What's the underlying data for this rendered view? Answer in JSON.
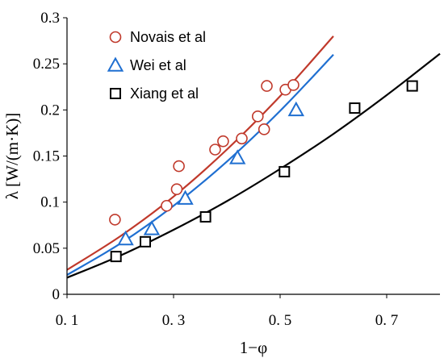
{
  "chart_data": {
    "type": "scatter",
    "xlabel": "1−φ",
    "ylabel": "λ [W/(m·K)]",
    "xlim": [
      0.1,
      0.8
    ],
    "ylim": [
      0,
      0.3
    ],
    "x_ticks": [
      0.1,
      0.3,
      0.5,
      0.7
    ],
    "x_tick_labels": [
      "0. 1",
      "0. 3",
      "0. 5",
      "0. 7"
    ],
    "y_ticks": [
      0,
      0.05,
      0.1,
      0.15,
      0.2,
      0.25,
      0.3
    ],
    "y_tick_labels": [
      "0",
      "0.05",
      "0.1",
      "0.15",
      "0.2",
      "0.25",
      "0.3"
    ],
    "grid": false,
    "legend_position": "top-left",
    "series": [
      {
        "name": "Novais et al",
        "marker": "circle",
        "color": "#c0392b",
        "points": [
          [
            0.19,
            0.081
          ],
          [
            0.287,
            0.096
          ],
          [
            0.306,
            0.114
          ],
          [
            0.31,
            0.139
          ],
          [
            0.378,
            0.157
          ],
          [
            0.393,
            0.166
          ],
          [
            0.428,
            0.169
          ],
          [
            0.458,
            0.193
          ],
          [
            0.47,
            0.179
          ],
          [
            0.475,
            0.226
          ],
          [
            0.51,
            0.222
          ],
          [
            0.525,
            0.227
          ]
        ],
        "fit": [
          [
            0.1,
            0.0265
          ],
          [
            0.2,
            0.063
          ],
          [
            0.3,
            0.106
          ],
          [
            0.4,
            0.157
          ],
          [
            0.5,
            0.215
          ],
          [
            0.6,
            0.28
          ]
        ]
      },
      {
        "name": "Wei et al",
        "marker": "triangle",
        "color": "#1f6fd1",
        "points": [
          [
            0.21,
            0.06
          ],
          [
            0.259,
            0.071
          ],
          [
            0.322,
            0.104
          ],
          [
            0.42,
            0.148
          ],
          [
            0.53,
            0.2
          ]
        ],
        "fit": [
          [
            0.1,
            0.021
          ],
          [
            0.2,
            0.055
          ],
          [
            0.3,
            0.096
          ],
          [
            0.4,
            0.144
          ],
          [
            0.5,
            0.199
          ],
          [
            0.6,
            0.26
          ]
        ]
      },
      {
        "name": "Xiang et al",
        "marker": "square",
        "color": "#000000",
        "points": [
          [
            0.192,
            0.041
          ],
          [
            0.247,
            0.057
          ],
          [
            0.36,
            0.084
          ],
          [
            0.508,
            0.133
          ],
          [
            0.64,
            0.202
          ],
          [
            0.748,
            0.226
          ]
        ],
        "fit": [
          [
            0.1,
            0.018
          ],
          [
            0.2,
            0.042
          ],
          [
            0.3,
            0.07
          ],
          [
            0.4,
            0.101
          ],
          [
            0.5,
            0.136
          ],
          [
            0.6,
            0.174
          ],
          [
            0.7,
            0.216
          ],
          [
            0.8,
            0.261
          ]
        ]
      }
    ]
  }
}
